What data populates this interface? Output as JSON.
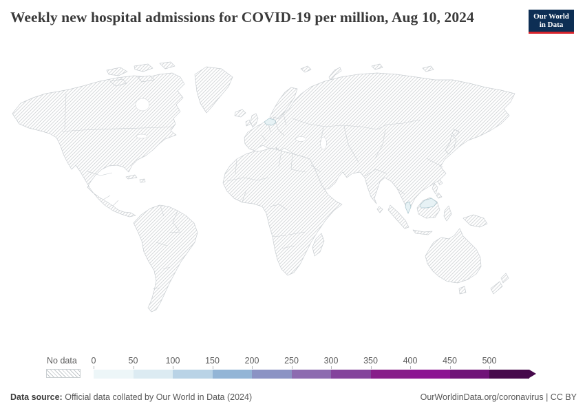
{
  "header": {
    "title": "Weekly new hospital admissions for COVID-19 per million, Aug 10, 2024",
    "logo": {
      "line1": "Our World",
      "line2": "in Data"
    }
  },
  "colors": {
    "logo_bg": "#0d2e54",
    "logo_accent": "#d8242c",
    "title_text": "#3a3a3a",
    "muted_text": "#5b5b5b",
    "map_border": "#c9ced2",
    "hatch_line": "#d6d9db"
  },
  "map": {
    "data_countries": [
      {
        "name": "Czechia",
        "bucket": "0-50",
        "fill": "#e7f2f5"
      },
      {
        "name": "Malaysia",
        "bucket": "0-50",
        "fill": "#e7f2f5"
      }
    ],
    "all_other_countries": "No data (hatched)"
  },
  "legend": {
    "no_data_label": "No data",
    "ticks": [
      "0",
      "50",
      "100",
      "150",
      "200",
      "250",
      "300",
      "350",
      "400",
      "450",
      "500"
    ],
    "colors": [
      "#edf6f8",
      "#dcebf2",
      "#b9d3e6",
      "#93b5d6",
      "#8b93c4",
      "#8d6bb0",
      "#84449c",
      "#871e89",
      "#8c1492",
      "#701378",
      "#46094b"
    ],
    "open_ended_max": true
  },
  "footer": {
    "source_label": "Data source:",
    "source_text": "Official data collated by Our World in Data (2024)",
    "link_text": "OurWorldinData.org/coronavirus | CC BY"
  },
  "chart_data": {
    "type": "heatmap",
    "subtype": "choropleth_world_map",
    "title": "Weekly new hospital admissions for COVID-19 per million, Aug 10, 2024",
    "date": "Aug 10, 2024",
    "legend_position": "bottom",
    "bins": [
      {
        "label": "No data",
        "style": "hatched"
      },
      {
        "min": 0,
        "max": 50,
        "color": "#edf6f8"
      },
      {
        "min": 50,
        "max": 100,
        "color": "#dcebf2"
      },
      {
        "min": 100,
        "max": 150,
        "color": "#b9d3e6"
      },
      {
        "min": 150,
        "max": 200,
        "color": "#93b5d6"
      },
      {
        "min": 200,
        "max": 250,
        "color": "#8b93c4"
      },
      {
        "min": 250,
        "max": 300,
        "color": "#8d6bb0"
      },
      {
        "min": 300,
        "max": 350,
        "color": "#84449c"
      },
      {
        "min": 350,
        "max": 400,
        "color": "#871e89"
      },
      {
        "min": 400,
        "max": 450,
        "color": "#8c1492"
      },
      {
        "min": 450,
        "max": 500,
        "color": "#701378"
      },
      {
        "min": 500,
        "max": null,
        "color": "#46094b",
        "open_ended": true
      }
    ],
    "values": [
      {
        "country": "Czechia",
        "bin": "0-50"
      },
      {
        "country": "Malaysia",
        "bin": "0-50"
      }
    ],
    "all_other_countries": "No data"
  }
}
